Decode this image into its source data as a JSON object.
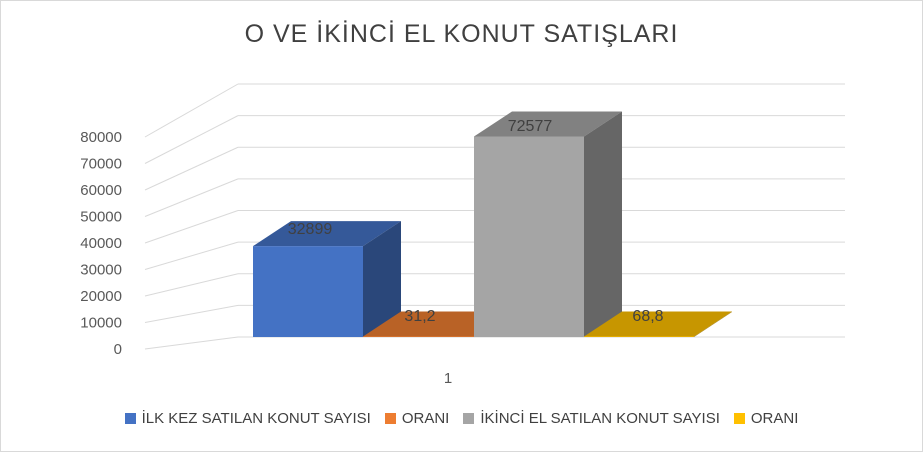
{
  "chart_data": {
    "type": "bar",
    "title": "O VE İKİNCİ EL KONUT SATIŞLARI",
    "categories": [
      "1"
    ],
    "series": [
      {
        "name": "İLK KEZ SATILAN KONUT SAYISI",
        "values": [
          32899
        ],
        "label": "32899",
        "color": "#4472c4"
      },
      {
        "name": "ORANI",
        "values": [
          31.2
        ],
        "label": "31,2",
        "color": "#ed7d31"
      },
      {
        "name": "İKİNCİ EL SATILAN KONUT SAYISI",
        "values": [
          72577
        ],
        "label": "72577",
        "color": "#a5a5a5"
      },
      {
        "name": "ORANI",
        "values": [
          68.8
        ],
        "label": "68,8",
        "color": "#ffc000"
      }
    ],
    "y_ticks": [
      "0",
      "10000",
      "20000",
      "30000",
      "40000",
      "50000",
      "60000",
      "70000",
      "80000"
    ],
    "ylim": [
      0,
      80000
    ],
    "grid": true,
    "legend_position": "bottom"
  }
}
